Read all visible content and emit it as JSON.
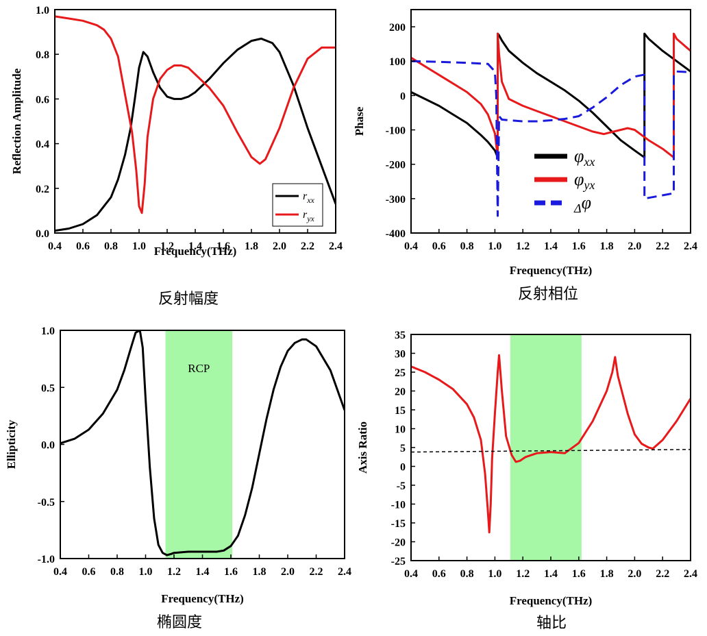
{
  "chart_data": [
    {
      "type": "line",
      "id": "amplitude",
      "caption": "反射幅度",
      "xlabel": "Frequency(THz)",
      "ylabel": "Reflection Amplitude",
      "xlim": [
        0.4,
        2.4
      ],
      "ylim": [
        0.0,
        1.0
      ],
      "xticks": [
        "0.4",
        "0.6",
        "0.8",
        "1.0",
        "1.2",
        "1.4",
        "1.6",
        "1.8",
        "2.0",
        "2.2",
        "2.4"
      ],
      "yticks": [
        "0.0",
        "0.2",
        "0.4",
        "0.6",
        "0.8",
        "1.0"
      ],
      "legend": {
        "position": "bottom-right",
        "entries": [
          {
            "base": "r",
            "sub": "xx",
            "color": "#000000"
          },
          {
            "base": "r",
            "sub": "yx",
            "color": "#e8191b"
          }
        ]
      },
      "series": [
        {
          "name": "r_xx",
          "color": "#000000",
          "x": [
            0.4,
            0.5,
            0.6,
            0.7,
            0.8,
            0.85,
            0.9,
            0.94,
            0.97,
            1.0,
            1.03,
            1.06,
            1.1,
            1.15,
            1.2,
            1.25,
            1.3,
            1.35,
            1.4,
            1.5,
            1.6,
            1.7,
            1.8,
            1.87,
            1.95,
            2.0,
            2.1,
            2.2,
            2.3,
            2.4
          ],
          "values": [
            0.01,
            0.02,
            0.04,
            0.08,
            0.16,
            0.24,
            0.35,
            0.47,
            0.6,
            0.74,
            0.81,
            0.79,
            0.72,
            0.65,
            0.61,
            0.6,
            0.6,
            0.61,
            0.63,
            0.69,
            0.76,
            0.82,
            0.86,
            0.87,
            0.85,
            0.81,
            0.66,
            0.47,
            0.3,
            0.13
          ]
        },
        {
          "name": "r_yx",
          "color": "#e8191b",
          "x": [
            0.4,
            0.5,
            0.6,
            0.7,
            0.75,
            0.8,
            0.85,
            0.9,
            0.95,
            0.98,
            1.0,
            1.02,
            1.04,
            1.06,
            1.1,
            1.15,
            1.2,
            1.25,
            1.3,
            1.35,
            1.4,
            1.5,
            1.6,
            1.7,
            1.8,
            1.86,
            1.9,
            2.0,
            2.1,
            2.2,
            2.3,
            2.4
          ],
          "values": [
            0.97,
            0.96,
            0.95,
            0.93,
            0.91,
            0.87,
            0.79,
            0.62,
            0.45,
            0.28,
            0.12,
            0.09,
            0.22,
            0.43,
            0.6,
            0.69,
            0.73,
            0.75,
            0.75,
            0.74,
            0.71,
            0.65,
            0.57,
            0.45,
            0.34,
            0.31,
            0.33,
            0.47,
            0.65,
            0.78,
            0.83,
            0.83
          ]
        }
      ]
    },
    {
      "type": "line",
      "id": "phase",
      "caption": "反射相位",
      "xlabel": "Frequency(THz)",
      "ylabel": "Phase",
      "xlim": [
        0.4,
        2.4
      ],
      "ylim": [
        -400,
        250
      ],
      "xticks": [
        "0.4",
        "0.6",
        "0.8",
        "1.0",
        "1.2",
        "1.4",
        "1.6",
        "1.8",
        "2.0",
        "2.2",
        "2.4"
      ],
      "yticks": [
        "-400",
        "-300",
        "-200",
        "-100",
        "0",
        "100",
        "200"
      ],
      "legend": {
        "position": "center",
        "entries": [
          {
            "base": "φ",
            "sub": "xx",
            "color": "#000000",
            "dash": false
          },
          {
            "base": "φ",
            "sub": "yx",
            "color": "#e8191b",
            "dash": false
          },
          {
            "base": "φ",
            "sub": "Δ",
            "color": "#1a1adc",
            "dash": true
          }
        ]
      },
      "series": [
        {
          "name": "φxx",
          "color": "#000000",
          "dash": false,
          "x": [
            0.4,
            0.5,
            0.6,
            0.7,
            0.8,
            0.9,
            0.95,
            1.0,
            1.02,
            1.02,
            1.03,
            1.05,
            1.1,
            1.2,
            1.3,
            1.4,
            1.5,
            1.6,
            1.7,
            1.8,
            1.9,
            2.0,
            2.07,
            2.07,
            2.1,
            2.2,
            2.3,
            2.4
          ],
          "values": [
            10,
            -10,
            -30,
            -55,
            -80,
            -115,
            -135,
            -160,
            -180,
            180,
            175,
            160,
            130,
            95,
            65,
            40,
            15,
            -15,
            -50,
            -90,
            -130,
            -160,
            -180,
            180,
            165,
            130,
            100,
            70
          ]
        },
        {
          "name": "φyx",
          "color": "#e8191b",
          "dash": false,
          "x": [
            0.4,
            0.5,
            0.6,
            0.7,
            0.8,
            0.9,
            0.95,
            1.0,
            1.02,
            1.02,
            1.03,
            1.05,
            1.1,
            1.2,
            1.3,
            1.4,
            1.5,
            1.6,
            1.7,
            1.78,
            1.85,
            1.95,
            2.0,
            2.1,
            2.2,
            2.28,
            2.28,
            2.3,
            2.4
          ],
          "values": [
            110,
            85,
            60,
            35,
            10,
            -25,
            -55,
            -110,
            -180,
            180,
            120,
            40,
            -10,
            -30,
            -45,
            -60,
            -75,
            -90,
            -105,
            -112,
            -105,
            -95,
            -100,
            -130,
            -155,
            -180,
            180,
            165,
            130
          ]
        },
        {
          "name": "Δφ",
          "color": "#1a1adc",
          "dash": true,
          "x": [
            0.4,
            0.6,
            0.8,
            0.95,
            1.0,
            1.01,
            1.02,
            1.02,
            1.03,
            1.05,
            1.1,
            1.2,
            1.3,
            1.4,
            1.5,
            1.6,
            1.7,
            1.8,
            1.9,
            2.0,
            2.06,
            2.07,
            2.07,
            2.27,
            2.28,
            2.28,
            2.3,
            2.4
          ],
          "values": [
            100,
            98,
            95,
            92,
            70,
            0,
            -350,
            -350,
            -60,
            -70,
            -72,
            -75,
            -75,
            -72,
            -68,
            -60,
            -35,
            -5,
            30,
            55,
            60,
            60,
            -300,
            -285,
            -285,
            65,
            70,
            68
          ]
        }
      ]
    },
    {
      "type": "line",
      "id": "ellipticity",
      "caption": "椭圆度",
      "xlabel": "Frequency(THz)",
      "ylabel": "Ellipticity",
      "xlim": [
        0.4,
        2.4
      ],
      "ylim": [
        -1.0,
        1.0
      ],
      "xticks": [
        "0.4",
        "0.6",
        "0.8",
        "1.0",
        "1.2",
        "1.4",
        "1.6",
        "1.8",
        "2.0",
        "2.2",
        "2.4"
      ],
      "yticks": [
        "-1.0",
        "-0.5",
        "0.0",
        "0.5",
        "1.0"
      ],
      "band": {
        "x0": 1.14,
        "x1": 1.61,
        "label": "RCP",
        "color": "#a6f7a6"
      },
      "series": [
        {
          "name": "Ellipticity",
          "color": "#000000",
          "dash": false,
          "x": [
            0.4,
            0.5,
            0.6,
            0.7,
            0.8,
            0.85,
            0.9,
            0.93,
            0.96,
            0.98,
            1.0,
            1.03,
            1.06,
            1.09,
            1.12,
            1.15,
            1.18,
            1.2,
            1.3,
            1.4,
            1.5,
            1.55,
            1.6,
            1.65,
            1.7,
            1.75,
            1.8,
            1.85,
            1.9,
            1.95,
            2.0,
            2.05,
            2.1,
            2.13,
            2.2,
            2.3,
            2.4
          ],
          "values": [
            0.01,
            0.05,
            0.13,
            0.27,
            0.48,
            0.65,
            0.86,
            0.98,
            1.0,
            0.85,
            0.4,
            -0.2,
            -0.65,
            -0.88,
            -0.95,
            -0.97,
            -0.96,
            -0.95,
            -0.94,
            -0.94,
            -0.94,
            -0.93,
            -0.89,
            -0.8,
            -0.62,
            -0.38,
            -0.08,
            0.22,
            0.48,
            0.68,
            0.82,
            0.89,
            0.92,
            0.92,
            0.86,
            0.65,
            0.3
          ]
        }
      ]
    },
    {
      "type": "line",
      "id": "axis_ratio",
      "caption": "轴比",
      "xlabel": "Frequency(THz)",
      "ylabel": "Axis Ratio",
      "xlim": [
        0.4,
        2.4
      ],
      "ylim": [
        -25,
        35
      ],
      "xticks": [
        "0.4",
        "0.6",
        "0.8",
        "1.0",
        "1.2",
        "1.4",
        "1.6",
        "1.8",
        "2.0",
        "2.2",
        "2.4"
      ],
      "yticks": [
        "-25",
        "-20",
        "-15",
        "-10",
        "-5",
        "0",
        "5",
        "10",
        "15",
        "20",
        "25",
        "30",
        "35"
      ],
      "band": {
        "x0": 1.11,
        "x1": 1.62,
        "label": "",
        "color": "#a6f7a6"
      },
      "series": [
        {
          "name": "Axis Ratio",
          "color": "#e8191b",
          "dash": false,
          "x": [
            0.4,
            0.5,
            0.6,
            0.7,
            0.8,
            0.85,
            0.9,
            0.93,
            0.95,
            0.96,
            0.97,
            0.98,
            1.0,
            1.02,
            1.03,
            1.05,
            1.08,
            1.12,
            1.15,
            1.18,
            1.22,
            1.3,
            1.4,
            1.5,
            1.6,
            1.7,
            1.8,
            1.84,
            1.86,
            1.88,
            1.95,
            2.0,
            2.05,
            2.1,
            2.13,
            2.2,
            2.3,
            2.4
          ],
          "values": [
            26.5,
            25,
            23,
            20.5,
            16.5,
            13,
            7,
            -2,
            -12,
            -17.5,
            -10,
            2,
            14,
            25,
            29.5,
            20,
            8,
            3,
            1.2,
            1.5,
            2.5,
            3.5,
            3.8,
            3.5,
            6.2,
            12,
            20,
            25,
            29,
            24,
            14,
            8.5,
            6,
            5,
            4.7,
            7,
            12,
            18
          ]
        },
        {
          "name": "3dB reference",
          "color": "#000000",
          "dash": true,
          "x": [
            0.4,
            2.4
          ],
          "values": [
            3.8,
            4.5
          ]
        }
      ]
    }
  ]
}
